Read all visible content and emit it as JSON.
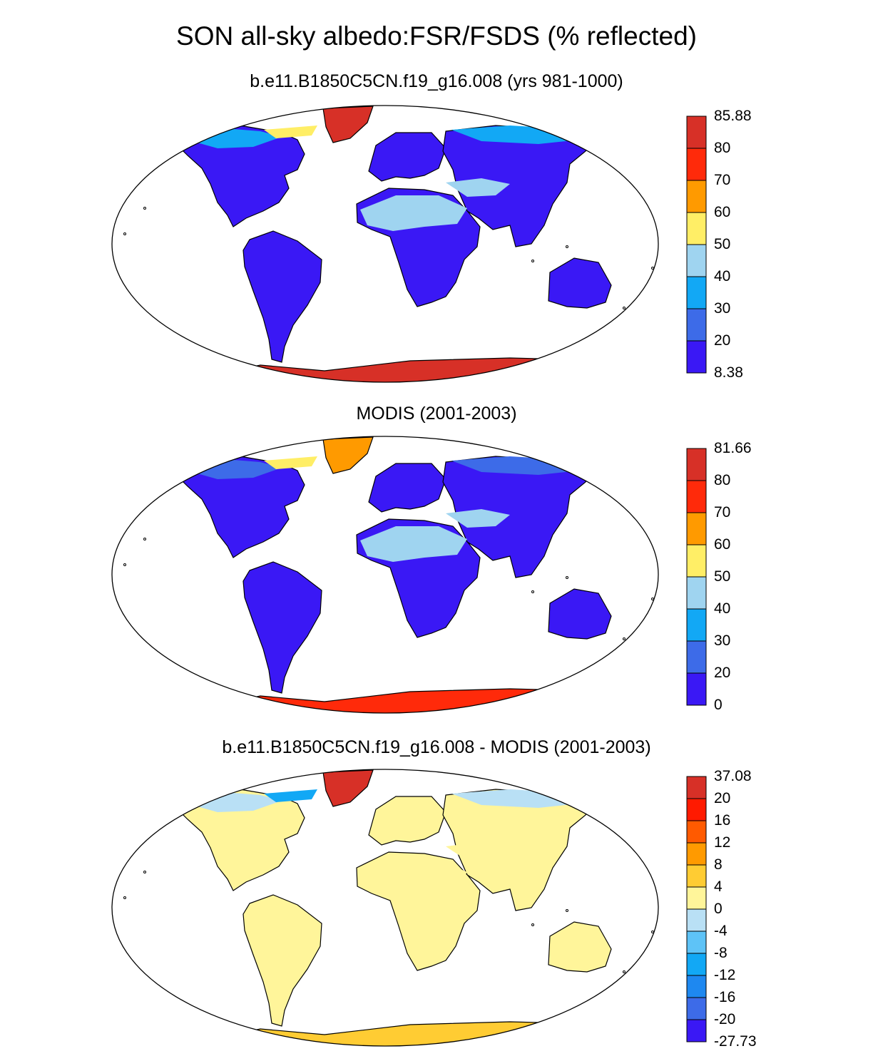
{
  "title": "SON all-sky albedo:FSR/FSDS (% reflected)",
  "panels": [
    {
      "title": "b.e11.B1850C5CN.f19_g16.008 (yrs 981-1000)",
      "colorbar": {
        "labels": [
          "85.88",
          "80",
          "70",
          "60",
          "50",
          "40",
          "30",
          "20",
          "8.38"
        ],
        "colors": [
          "#d73027",
          "#ff2a0a",
          "#ff9a00",
          "#ffee66",
          "#9fd4f0",
          "#12a8f5",
          "#3d6be8",
          "#3a18f5"
        ]
      },
      "fill": {
        "land": "#3a18f5",
        "high_lat": "#12a8f5",
        "arid": "#9fd4f0",
        "greenland": "#d73027",
        "antarctica": "#d73027",
        "arctic_edge": "#ffee66"
      }
    },
    {
      "title": "MODIS (2001-2003)",
      "colorbar": {
        "labels": [
          "81.66",
          "80",
          "70",
          "60",
          "50",
          "40",
          "30",
          "20",
          "0"
        ],
        "colors": [
          "#d73027",
          "#ff2a0a",
          "#ff9a00",
          "#ffee66",
          "#9fd4f0",
          "#12a8f5",
          "#3d6be8",
          "#3a18f5"
        ]
      },
      "fill": {
        "land": "#3a18f5",
        "high_lat": "#3d6be8",
        "arid": "#9fd4f0",
        "greenland": "#ff9a00",
        "antarctica": "#ff2a0a",
        "arctic_edge": "#ffee66"
      }
    },
    {
      "title": "b.e11.B1850C5CN.f19_g16.008 - MODIS (2001-2003)",
      "colorbar": {
        "labels": [
          "37.08",
          "20",
          "16",
          "12",
          "8",
          "4",
          "0",
          "-4",
          "-8",
          "-12",
          "-16",
          "-20",
          "-27.73"
        ],
        "colors": [
          "#d73027",
          "#ff1a00",
          "#ff5a00",
          "#ff9a00",
          "#ffcc33",
          "#fff59a",
          "#b9e0f5",
          "#5ec3f7",
          "#12a8f5",
          "#1e88f0",
          "#3d6be8",
          "#3a18f5"
        ]
      },
      "fill": {
        "land": "#fff59a",
        "high_lat": "#b9e0f5",
        "arid": "#fff59a",
        "greenland": "#d73027",
        "antarctica": "#ffcc33",
        "arctic_edge": "#12a8f5"
      }
    }
  ]
}
